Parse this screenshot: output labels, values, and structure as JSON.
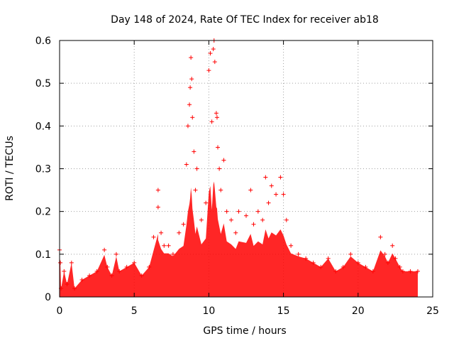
{
  "chart_data": {
    "type": "scatter",
    "title": "Day 148 of 2024, Rate Of TEC Index for receiver ab18",
    "xlabel": "GPS time / hours",
    "ylabel": "ROTI / TECUs",
    "xlim": [
      0,
      25
    ],
    "ylim": [
      0,
      0.6
    ],
    "xticks": [
      "0",
      "5",
      "10",
      "15",
      "20",
      "25"
    ],
    "yticks": [
      "0",
      "0.1",
      "0.2",
      "0.3",
      "0.4",
      "0.5",
      "0.6"
    ],
    "grid": true,
    "marker": "+",
    "color": "#ff0000",
    "series": [
      {
        "name": "ROTI",
        "points": [
          [
            0.0,
            0.11
          ],
          [
            0.05,
            0.08
          ],
          [
            0.1,
            0.02
          ],
          [
            0.3,
            0.06
          ],
          [
            0.5,
            0.03
          ],
          [
            0.8,
            0.08
          ],
          [
            1.0,
            0.02
          ],
          [
            1.5,
            0.04
          ],
          [
            2.0,
            0.05
          ],
          [
            2.5,
            0.06
          ],
          [
            3.0,
            0.11
          ],
          [
            3.2,
            0.07
          ],
          [
            3.5,
            0.05
          ],
          [
            3.8,
            0.1
          ],
          [
            4.0,
            0.06
          ],
          [
            4.5,
            0.07
          ],
          [
            5.0,
            0.08
          ],
          [
            5.5,
            0.05
          ],
          [
            6.0,
            0.07
          ],
          [
            6.3,
            0.14
          ],
          [
            6.6,
            0.25
          ],
          [
            6.6,
            0.21
          ],
          [
            6.8,
            0.15
          ],
          [
            7.0,
            0.12
          ],
          [
            7.3,
            0.12
          ],
          [
            7.6,
            0.1
          ],
          [
            8.0,
            0.15
          ],
          [
            8.3,
            0.17
          ],
          [
            8.5,
            0.31
          ],
          [
            8.6,
            0.4
          ],
          [
            8.7,
            0.45
          ],
          [
            8.75,
            0.49
          ],
          [
            8.8,
            0.56
          ],
          [
            8.85,
            0.51
          ],
          [
            8.9,
            0.42
          ],
          [
            9.0,
            0.34
          ],
          [
            9.1,
            0.25
          ],
          [
            9.2,
            0.3
          ],
          [
            9.5,
            0.18
          ],
          [
            9.8,
            0.22
          ],
          [
            10.0,
            0.53
          ],
          [
            10.1,
            0.57
          ],
          [
            10.2,
            0.41
          ],
          [
            10.3,
            0.58
          ],
          [
            10.35,
            0.6
          ],
          [
            10.4,
            0.55
          ],
          [
            10.5,
            0.43
          ],
          [
            10.55,
            0.42
          ],
          [
            10.6,
            0.35
          ],
          [
            10.7,
            0.3
          ],
          [
            10.8,
            0.25
          ],
          [
            11.0,
            0.32
          ],
          [
            11.2,
            0.2
          ],
          [
            11.5,
            0.18
          ],
          [
            11.8,
            0.15
          ],
          [
            12.0,
            0.2
          ],
          [
            12.5,
            0.19
          ],
          [
            12.8,
            0.25
          ],
          [
            13.0,
            0.17
          ],
          [
            13.3,
            0.2
          ],
          [
            13.6,
            0.18
          ],
          [
            13.8,
            0.28
          ],
          [
            14.0,
            0.22
          ],
          [
            14.2,
            0.26
          ],
          [
            14.5,
            0.24
          ],
          [
            14.8,
            0.28
          ],
          [
            15.0,
            0.24
          ],
          [
            15.2,
            0.18
          ],
          [
            15.5,
            0.12
          ],
          [
            16.0,
            0.1
          ],
          [
            16.5,
            0.09
          ],
          [
            17.0,
            0.08
          ],
          [
            17.5,
            0.07
          ],
          [
            18.0,
            0.09
          ],
          [
            18.5,
            0.06
          ],
          [
            19.0,
            0.07
          ],
          [
            19.5,
            0.1
          ],
          [
            20.0,
            0.08
          ],
          [
            20.5,
            0.07
          ],
          [
            21.0,
            0.06
          ],
          [
            21.5,
            0.14
          ],
          [
            21.8,
            0.1
          ],
          [
            22.0,
            0.08
          ],
          [
            22.3,
            0.12
          ],
          [
            22.5,
            0.09
          ],
          [
            22.8,
            0.07
          ],
          [
            23.0,
            0.06
          ],
          [
            23.5,
            0.06
          ],
          [
            24.0,
            0.06
          ]
        ]
      }
    ]
  }
}
